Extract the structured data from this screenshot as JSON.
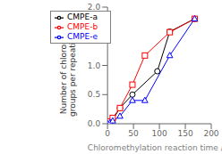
{
  "chart_data": {
    "type": "line",
    "xlabel": "Chloromethylation reaction time / h",
    "ylabel": "Number of chloromethyl\ngroups per repeating unit",
    "series": [
      {
        "name": "CMPE-a",
        "color": "#000000",
        "marker": "circle",
        "line_style": "solid",
        "x": [
          0,
          5,
          10,
          24,
          48,
          96,
          120,
          168
        ],
        "values": [
          0.0,
          0.03,
          0.07,
          0.27,
          0.5,
          0.9,
          1.58,
          1.8
        ]
      },
      {
        "name": "CMPE-b",
        "color": "#ff0000",
        "marker": "square",
        "line_style": "solid",
        "x": [
          0,
          5,
          10,
          24,
          48,
          72,
          120,
          168
        ],
        "values": [
          0.0,
          0.04,
          0.1,
          0.27,
          0.67,
          1.17,
          1.57,
          1.8
        ]
      },
      {
        "name": "CMPE-e",
        "color": "#0000ff",
        "marker": "triangle",
        "line_style": "solid",
        "x": [
          0,
          5,
          10,
          24,
          48,
          72,
          120,
          168
        ],
        "values": [
          0.0,
          0.02,
          0.05,
          0.13,
          0.4,
          0.4,
          1.17,
          1.8
        ]
      }
    ],
    "xlim": [
      0,
      200
    ],
    "ylim": [
      0,
      2.0
    ],
    "xticks": [
      0,
      50,
      100,
      150,
      200
    ],
    "yticks": [
      {
        "value": 0,
        "label": "0.0"
      },
      0.5,
      {
        "value": 1,
        "label": "1.0"
      },
      1.5,
      {
        "value": 2,
        "label": "2.0"
      }
    ],
    "grid": false,
    "legend": "upper left"
  }
}
